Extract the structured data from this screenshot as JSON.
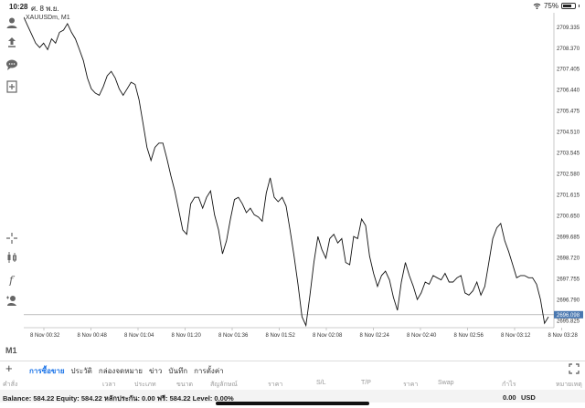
{
  "status": {
    "time": "10:28",
    "date": "ศ. 8 พ.ย.",
    "battery": "75%",
    "battery_level": 0.75
  },
  "icons": [
    "account-icon",
    "trade-icon",
    "chat-icon",
    "add-chart-icon",
    "crosshair-icon",
    "chart-type-icon",
    "indicator-icon",
    "objects-icon"
  ],
  "toolbar": {
    "timeframe": "M1"
  },
  "chart": {
    "symbol": "XAUUSDm, M1",
    "current_price": "2696.098",
    "price_labels": [
      "2709.335",
      "2708.370",
      "2707.405",
      "2706.440",
      "2705.475",
      "2704.510",
      "2703.545",
      "2702.580",
      "2701.615",
      "2700.650",
      "2699.685",
      "2698.720",
      "2697.755",
      "2696.790",
      "2695.825"
    ],
    "time_labels": [
      "8 Nov 00:32",
      "8 Nov 00:48",
      "8 Nov 01:04",
      "8 Nov 01:20",
      "8 Nov 01:36",
      "8 Nov 01:52",
      "8 Nov 02:08",
      "8 Nov 02:24",
      "8 Nov 02:40",
      "8 Nov 02:56",
      "8 Nov 03:12",
      "8 Nov 03:28"
    ]
  },
  "chart_data": {
    "type": "line",
    "xlabel": "",
    "ylabel": "",
    "ylim": [
      2695.5,
      2710.0
    ],
    "y": [
      2709.8,
      2709.4,
      2709.0,
      2708.6,
      2708.4,
      2708.6,
      2708.3,
      2708.8,
      2708.6,
      2709.1,
      2709.2,
      2709.5,
      2709.1,
      2708.8,
      2708.3,
      2707.8,
      2707.0,
      2706.5,
      2706.3,
      2706.2,
      2706.6,
      2707.1,
      2707.3,
      2707.0,
      2706.5,
      2706.2,
      2706.5,
      2706.8,
      2706.7,
      2706.0,
      2704.9,
      2703.8,
      2703.2,
      2703.8,
      2704.0,
      2704.0,
      2703.3,
      2702.5,
      2701.8,
      2700.9,
      2700.0,
      2699.8,
      2701.2,
      2701.5,
      2701.5,
      2701.0,
      2701.5,
      2701.8,
      2700.7,
      2700.0,
      2698.9,
      2699.5,
      2700.5,
      2701.4,
      2701.5,
      2701.2,
      2700.8,
      2701.0,
      2700.7,
      2700.6,
      2700.4,
      2701.7,
      2702.4,
      2701.5,
      2701.3,
      2701.5,
      2701.1,
      2700.0,
      2698.8,
      2697.5,
      2696.0,
      2695.6,
      2697.0,
      2698.5,
      2699.7,
      2699.1,
      2698.7,
      2699.6,
      2699.8,
      2699.4,
      2699.6,
      2698.5,
      2698.4,
      2699.7,
      2699.6,
      2700.5,
      2700.2,
      2698.8,
      2698.0,
      2697.4,
      2697.9,
      2698.1,
      2697.7,
      2696.9,
      2696.3,
      2697.6,
      2698.5,
      2697.9,
      2697.4,
      2696.8,
      2697.1,
      2697.6,
      2697.5,
      2697.9,
      2697.8,
      2697.7,
      2698.0,
      2697.6,
      2697.6,
      2697.8,
      2697.9,
      2697.1,
      2697.0,
      2697.2,
      2697.6,
      2697.0,
      2697.4,
      2698.5,
      2699.6,
      2700.1,
      2700.3,
      2699.5,
      2699.0,
      2698.4,
      2697.8,
      2697.9,
      2697.9,
      2697.8,
      2697.8,
      2697.5,
      2696.8,
      2695.7,
      2696.0
    ]
  },
  "tabs": [
    "การซื้อขาย",
    "ประวัติ",
    "กล่องจดหมาย",
    "ข่าว",
    "บันทึก",
    "การตั้งค่า"
  ],
  "active_tab": 0,
  "columns": [
    "คำสั่ง",
    "เวลา",
    "ประเภท",
    "ขนาด",
    "สัญลักษณ์",
    "ราคา",
    "S/L",
    "T/P",
    "ราคา",
    "Swap",
    "กำไร",
    "หมายเหตุ"
  ],
  "account": {
    "summary": "Balance: 584.22 Equity: 584.22 หลักประกัน: 0.00 ฟรี: 584.22 Level: 0.00%",
    "profit": "0.00",
    "currency": "USD"
  }
}
